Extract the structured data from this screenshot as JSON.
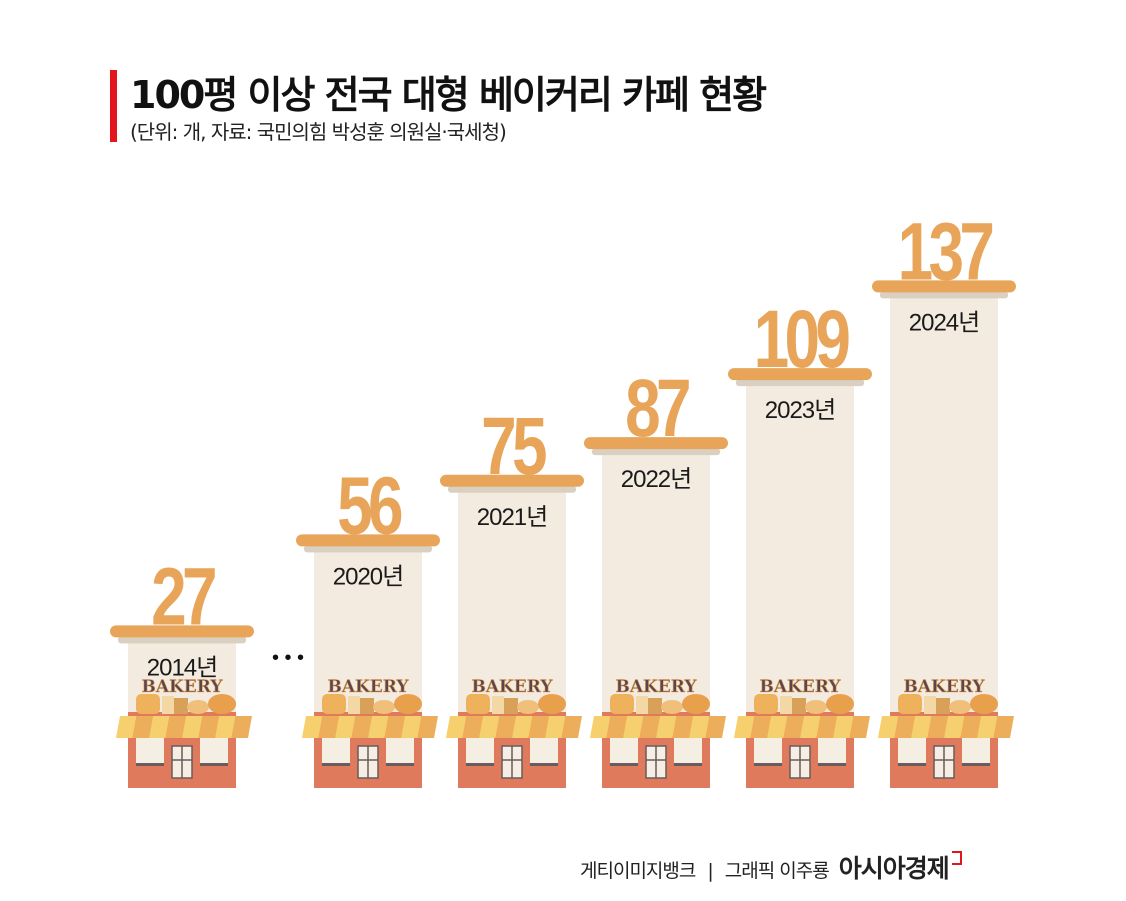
{
  "title": "100평 이상 전국 대형 베이커리 카페 현황",
  "subtitle": "(단위: 개, 자료: 국민의힘 박성훈 의원실·국세청)",
  "chart_data": {
    "type": "bar",
    "title": "100평 이상 전국 대형 베이커리 카페 현황",
    "categories": [
      "2014년",
      "2020년",
      "2021년",
      "2022년",
      "2023년",
      "2024년"
    ],
    "values": [
      27,
      56,
      75,
      87,
      109,
      137
    ],
    "gap_marker": "• • •",
    "sign_text": "BAKERY",
    "colors": {
      "value": "#E8A55A",
      "tower": "#F3EBE0",
      "cap_shadow": "#D9D0C1",
      "building": "#E07A5C",
      "awning_a": "#F6CF6E",
      "awning_b": "#EDAE5C",
      "sign": "#5A4650"
    }
  },
  "footer": {
    "credit_photo": "게티이미지뱅크",
    "separator": "|",
    "credit_graphic": "그래픽 이주룡",
    "brand": "아시아경제"
  }
}
